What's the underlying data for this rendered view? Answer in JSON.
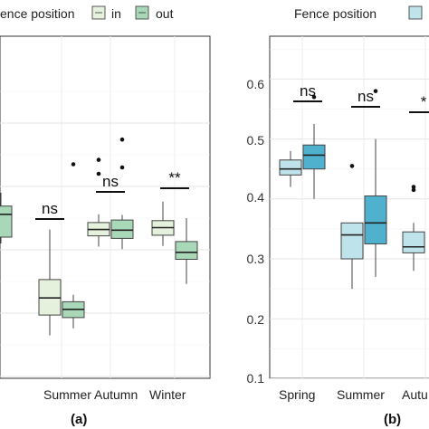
{
  "panels": [
    {
      "legend": {
        "title_visible": "ence position",
        "entries": [
          "in",
          "out"
        ],
        "colors": [
          "#e5f1dc",
          "#a9d8b8"
        ]
      },
      "panel_label": "(a)"
    },
    {
      "legend": {
        "title_visible": "Fence position",
        "entries": [],
        "colors": [
          "#bfe3ea",
          "#4fb1ce"
        ]
      },
      "panel_label": "(b)"
    }
  ],
  "chart_data": [
    {
      "type": "box",
      "categories_visible": [
        "g",
        "Summer",
        "Autumn",
        "Winter"
      ],
      "categories": [
        "Spring",
        "Summer",
        "Autumn",
        "Winter"
      ],
      "series": [
        {
          "name": "in",
          "color": "#e5f1dc",
          "boxes": [
            null,
            {
              "min": 0.265,
              "q1": 0.297,
              "median": 0.324,
              "q3": 0.353,
              "max": 0.432
            },
            {
              "min": 0.405,
              "q1": 0.422,
              "median": 0.432,
              "q3": 0.443,
              "max": 0.456
            },
            {
              "min": 0.406,
              "q1": 0.423,
              "median": 0.435,
              "q3": 0.446,
              "max": 0.476
            }
          ],
          "outliers": [
            [],
            [],
            [
              0.542,
              0.52
            ],
            []
          ]
        },
        {
          "name": "out",
          "color": "#a9d8b8",
          "boxes": [
            {
              "min": 0.41,
              "q1": 0.42,
              "median": 0.456,
              "q3": 0.469,
              "max": 0.49
            },
            {
              "min": 0.276,
              "q1": 0.293,
              "median": 0.306,
              "q3": 0.318,
              "max": 0.329
            },
            {
              "min": 0.401,
              "q1": 0.418,
              "median": 0.431,
              "q3": 0.447,
              "max": 0.455
            },
            {
              "min": 0.346,
              "q1": 0.385,
              "median": 0.396,
              "q3": 0.413,
              "max": 0.45
            }
          ],
          "outliers": [
            [],
            [
              0.535
            ],
            [
              0.574,
              0.53
            ],
            []
          ]
        }
      ],
      "significance": [
        null,
        "ns",
        "ns",
        "**"
      ],
      "ylim": [
        0.1,
        0.65
      ]
    },
    {
      "type": "box",
      "categories_visible": [
        "Spring",
        "Summer",
        "Autu"
      ],
      "categories": [
        "Spring",
        "Summer",
        "Autumn"
      ],
      "yticks": [
        "0.1",
        "0.2",
        "0.3",
        "0.4",
        "0.5",
        "0.6"
      ],
      "series": [
        {
          "name": "in",
          "color": "#bfe3ea",
          "boxes": [
            {
              "min": 0.42,
              "q1": 0.44,
              "median": 0.45,
              "q3": 0.465,
              "max": 0.48
            },
            {
              "min": 0.25,
              "q1": 0.3,
              "median": 0.34,
              "q3": 0.36,
              "max": 0.36
            },
            {
              "min": 0.28,
              "q1": 0.31,
              "median": 0.32,
              "q3": 0.345,
              "max": 0.36
            }
          ],
          "outliers": [
            [],
            [
              0.455
            ],
            [
              0.42,
              0.415
            ]
          ]
        },
        {
          "name": "out",
          "color": "#4fb1ce",
          "boxes": [
            {
              "min": 0.4,
              "q1": 0.45,
              "median": 0.473,
              "q3": 0.49,
              "max": 0.525
            },
            {
              "min": 0.27,
              "q1": 0.325,
              "median": 0.36,
              "q3": 0.405,
              "max": 0.5
            },
            null
          ],
          "outliers": [
            [
              0.57
            ],
            [
              0.58
            ],
            []
          ]
        }
      ],
      "significance": [
        "ns",
        "ns",
        "*"
      ],
      "ylim": [
        0.1,
        0.65
      ]
    }
  ]
}
